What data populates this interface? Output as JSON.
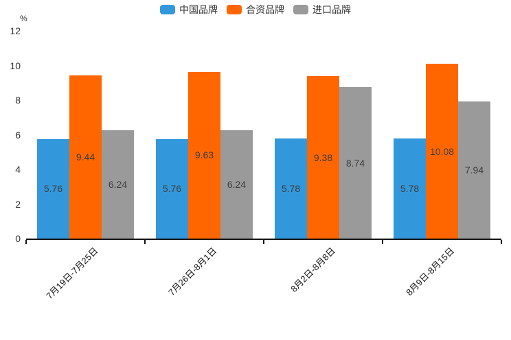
{
  "chart_data": {
    "type": "bar",
    "title": "",
    "unit_label": "%",
    "categories": [
      "7月19日-7月25日",
      "7月26日-8月1日",
      "8月2日-8月8日",
      "8月9日-8月15日"
    ],
    "series": [
      {
        "name": "中国品牌",
        "color": "#3398DB",
        "values": [
          5.76,
          5.76,
          5.78,
          5.78
        ]
      },
      {
        "name": "合资品牌",
        "color": "#FF6600",
        "values": [
          9.44,
          9.63,
          9.38,
          10.08
        ]
      },
      {
        "name": "进口品牌",
        "color": "#9A9A9A",
        "values": [
          6.24,
          6.24,
          8.74,
          7.94
        ]
      }
    ],
    "y_axis": {
      "min": 0,
      "max": 12,
      "tick_step": 2,
      "ticks": [
        0,
        2,
        4,
        6,
        8,
        10,
        12
      ]
    },
    "x_label_rotation": -45,
    "legend_position": "top",
    "grid": false,
    "value_labels": "inside-middle",
    "axis_color": "#141414",
    "label_color": "#3d3d3d",
    "tick_label_color": "#333333"
  }
}
